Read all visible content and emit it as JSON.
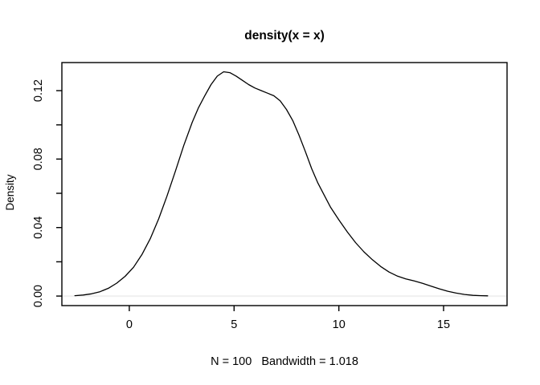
{
  "figure": {
    "background": "#ffffff"
  },
  "chart_data": {
    "type": "line",
    "title": "density(x = x)",
    "xlabel": "N = 100   Bandwidth = 1.018",
    "ylabel": "Density",
    "grid": false,
    "legend": null,
    "xlim": [
      -3.22,
      18.03
    ],
    "ylim": [
      -0.0056,
      0.1364
    ],
    "x_ticks": {
      "values": [
        0,
        5,
        10,
        15
      ],
      "labels": [
        "0",
        "5",
        "10",
        "15"
      ]
    },
    "y_ticks": {
      "values": [
        0.0,
        0.02,
        0.04,
        0.06,
        0.08,
        0.1,
        0.12
      ],
      "labels": [
        "0.00",
        "",
        "0.04",
        "",
        "0.08",
        "",
        "0.12"
      ]
    },
    "axis_color": "#000000",
    "text_color": "#000000",
    "zero_line": {
      "y": 0,
      "color": "#f0f0f0"
    },
    "series": [
      {
        "name": "density",
        "color": "#000000",
        "x": [
          -2.6,
          -2.2,
          -1.8,
          -1.4,
          -1.0,
          -0.6,
          -0.2,
          0.2,
          0.6,
          1.0,
          1.4,
          1.8,
          2.2,
          2.6,
          3.0,
          3.3,
          3.6,
          3.9,
          4.2,
          4.5,
          4.8,
          5.1,
          5.4,
          5.7,
          6.0,
          6.3,
          6.6,
          6.9,
          7.2,
          7.5,
          7.8,
          8.1,
          8.4,
          8.7,
          9.0,
          9.3,
          9.6,
          10.0,
          10.4,
          10.8,
          11.2,
          11.6,
          12.0,
          12.4,
          12.8,
          13.2,
          13.6,
          14.0,
          14.4,
          14.8,
          15.2,
          15.6,
          16.0,
          16.4,
          16.8,
          17.1
        ],
        "y": [
          0.0002,
          0.0006,
          0.0013,
          0.0025,
          0.0045,
          0.0075,
          0.0115,
          0.0168,
          0.0242,
          0.0335,
          0.045,
          0.0585,
          0.073,
          0.088,
          0.1015,
          0.11,
          0.117,
          0.1235,
          0.1285,
          0.131,
          0.1305,
          0.1285,
          0.126,
          0.1235,
          0.1215,
          0.12,
          0.1185,
          0.117,
          0.114,
          0.109,
          0.1025,
          0.094,
          0.0845,
          0.0745,
          0.066,
          0.059,
          0.052,
          0.0445,
          0.0375,
          0.0312,
          0.0258,
          0.0212,
          0.0172,
          0.014,
          0.0116,
          0.01,
          0.0088,
          0.0074,
          0.0058,
          0.0042,
          0.0028,
          0.0017,
          0.0009,
          0.0004,
          0.0002,
          0.0001
        ]
      }
    ]
  }
}
